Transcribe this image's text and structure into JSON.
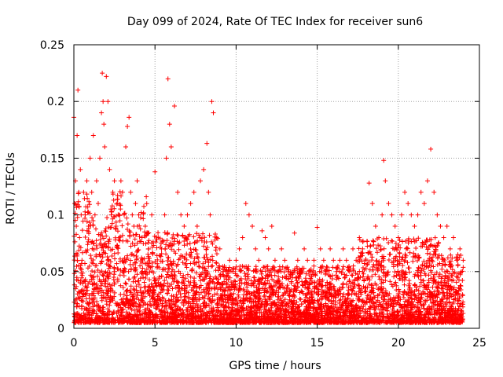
{
  "chart_data": {
    "type": "scatter",
    "title": "Day 099 of 2024, Rate Of TEC Index for receiver sun6",
    "xlabel": "GPS time / hours",
    "ylabel": "ROTI / TECUs",
    "xlim": [
      0,
      25
    ],
    "ylim": [
      0,
      0.25
    ],
    "x_ticks": [
      0,
      5,
      10,
      15,
      20,
      25
    ],
    "y_ticks": [
      0,
      0.05,
      0.1,
      0.15,
      0.2,
      0.25
    ],
    "x_tick_labels": [
      "0",
      "5",
      "10",
      "15",
      "20",
      "25"
    ],
    "y_tick_labels": [
      "0",
      "0.05",
      "0.1",
      "0.15",
      "0.2",
      "0.25"
    ],
    "grid": true,
    "marker": "plus",
    "marker_color": "#ff0000",
    "series": [
      {
        "x": [
          0.0,
          0.05,
          0.1,
          0.15,
          0.2,
          0.25,
          0.3,
          0.35,
          0.4,
          0.45,
          0.5,
          0.6,
          0.7,
          0.8,
          0.9,
          1.0,
          1.1,
          1.2,
          1.3,
          1.4,
          1.5,
          1.6,
          1.7,
          1.75,
          1.8,
          1.85,
          1.9,
          2.0,
          2.1,
          2.2,
          2.3,
          2.4,
          2.5,
          2.6,
          2.7,
          2.8,
          2.9,
          3.0,
          3.1,
          3.2,
          3.3,
          3.4,
          3.5,
          3.6,
          3.7,
          3.8,
          3.9,
          4.0,
          4.2,
          4.4,
          4.6,
          4.8,
          5.0,
          5.2,
          5.4,
          5.6,
          5.7,
          5.8,
          5.9,
          6.0,
          6.2,
          6.4,
          6.6,
          6.8,
          7.0,
          7.2,
          7.4,
          7.6,
          7.8,
          8.0,
          8.2,
          8.3,
          8.4,
          8.5,
          8.6,
          8.8,
          9.0,
          9.2,
          9.4,
          9.6,
          9.8,
          10.0,
          10.2,
          10.4,
          10.6,
          10.8,
          11.0,
          11.2,
          11.4,
          11.6,
          11.8,
          12.0,
          12.2,
          12.4,
          12.6,
          12.8,
          13.0,
          13.2,
          13.4,
          13.6,
          13.8,
          14.0,
          14.2,
          14.4,
          14.6,
          14.8,
          15.0,
          15.2,
          15.4,
          15.6,
          15.8,
          16.0,
          16.2,
          16.4,
          16.6,
          16.8,
          17.0,
          17.2,
          17.4,
          17.6,
          17.8,
          18.0,
          18.2,
          18.4,
          18.6,
          18.8,
          19.0,
          19.1,
          19.2,
          19.4,
          19.6,
          19.8,
          20.0,
          20.2,
          20.4,
          20.6,
          20.8,
          21.0,
          21.2,
          21.4,
          21.6,
          21.8,
          22.0,
          22.2,
          22.4,
          22.6,
          22.8,
          23.0,
          23.2,
          23.4,
          23.6,
          23.8,
          24.0
        ],
        "y": [
          0.186,
          0.11,
          0.13,
          0.09,
          0.17,
          0.21,
          0.12,
          0.08,
          0.14,
          0.1,
          0.06,
          0.12,
          0.1,
          0.13,
          0.09,
          0.15,
          0.12,
          0.17,
          0.1,
          0.13,
          0.11,
          0.15,
          0.19,
          0.225,
          0.2,
          0.18,
          0.16,
          0.222,
          0.2,
          0.14,
          0.1,
          0.12,
          0.13,
          0.09,
          0.11,
          0.1,
          0.13,
          0.12,
          0.1,
          0.16,
          0.178,
          0.186,
          0.12,
          0.1,
          0.09,
          0.11,
          0.13,
          0.1,
          0.08,
          0.09,
          0.07,
          0.1,
          0.138,
          0.08,
          0.07,
          0.1,
          0.15,
          0.22,
          0.18,
          0.16,
          0.196,
          0.12,
          0.1,
          0.09,
          0.1,
          0.11,
          0.12,
          0.09,
          0.13,
          0.14,
          0.163,
          0.12,
          0.1,
          0.2,
          0.19,
          0.08,
          0.07,
          0.05,
          0.04,
          0.06,
          0.05,
          0.06,
          0.07,
          0.08,
          0.11,
          0.1,
          0.09,
          0.07,
          0.06,
          0.086,
          0.08,
          0.07,
          0.09,
          0.06,
          0.05,
          0.07,
          0.06,
          0.05,
          0.04,
          0.084,
          0.06,
          0.05,
          0.07,
          0.06,
          0.05,
          0.06,
          0.089,
          0.07,
          0.06,
          0.05,
          0.07,
          0.06,
          0.05,
          0.06,
          0.07,
          0.06,
          0.05,
          0.07,
          0.06,
          0.08,
          0.07,
          0.06,
          0.128,
          0.11,
          0.09,
          0.08,
          0.1,
          0.148,
          0.13,
          0.11,
          0.1,
          0.09,
          0.08,
          0.1,
          0.12,
          0.11,
          0.1,
          0.09,
          0.1,
          0.12,
          0.11,
          0.13,
          0.158,
          0.12,
          0.1,
          0.09,
          0.08,
          0.09,
          0.07,
          0.08,
          0.06,
          0.07,
          0.06
        ]
      }
    ]
  }
}
